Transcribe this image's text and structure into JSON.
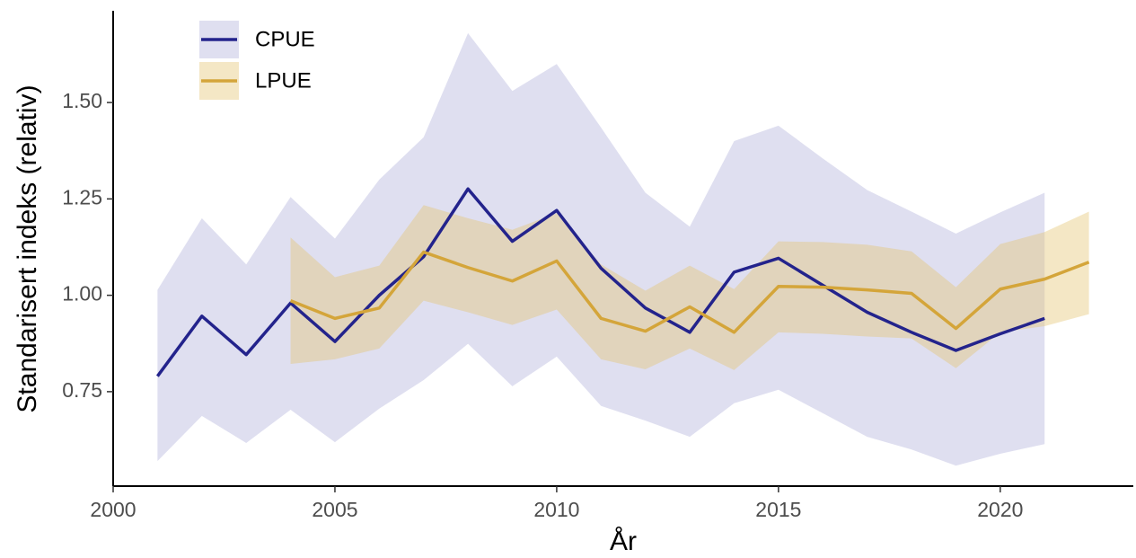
{
  "chart_data": {
    "type": "line",
    "x_label": "År",
    "y_label": "Standarisert indeks (relativ)",
    "x": [
      2001,
      2002,
      2003,
      2004,
      2005,
      2006,
      2007,
      2008,
      2009,
      2010,
      2011,
      2012,
      2013,
      2014,
      2015,
      2016,
      2017,
      2018,
      2019,
      2020,
      2021,
      2022
    ],
    "xlim": [
      2000,
      2023
    ],
    "xticks": [
      2000,
      2005,
      2010,
      2015,
      2020
    ],
    "ylim": [
      0.505,
      1.738
    ],
    "yticks": [
      0.75,
      {
        "value": 1,
        "label": "1.00"
      },
      1.25,
      {
        "value": 1.5,
        "label": "1.50"
      }
    ],
    "grid": false,
    "legend": "top-left",
    "series": [
      {
        "name": "CPUE",
        "color": "#23238c",
        "band_color": "#c9cae6",
        "values": [
          0.79,
          0.946,
          0.846,
          0.98,
          0.88,
          1.0,
          1.1,
          1.276,
          1.14,
          1.22,
          1.07,
          0.967,
          0.904,
          1.06,
          1.096,
          1.026,
          0.956,
          0.904,
          0.857,
          0.9,
          0.94,
          null
        ],
        "lower": [
          0.57,
          0.687,
          0.617,
          0.703,
          0.619,
          0.706,
          0.78,
          0.874,
          0.764,
          0.841,
          0.713,
          0.675,
          0.633,
          0.72,
          0.755,
          0.694,
          0.633,
          0.6,
          0.558,
          0.589,
          0.614,
          null
        ],
        "upper": [
          1.014,
          1.2,
          1.08,
          1.255,
          1.147,
          1.3,
          1.41,
          1.68,
          1.53,
          1.6,
          1.435,
          1.266,
          1.178,
          1.4,
          1.44,
          1.355,
          1.273,
          1.217,
          1.16,
          1.215,
          1.266,
          null
        ]
      },
      {
        "name": "LPUE",
        "color": "#d4a53a",
        "band_color": "#e3c46f",
        "values": [
          null,
          null,
          null,
          0.986,
          0.94,
          0.967,
          1.112,
          1.072,
          1.037,
          1.089,
          0.94,
          0.907,
          0.97,
          0.904,
          1.023,
          1.021,
          1.014,
          1.005,
          0.914,
          1.016,
          1.042,
          1.086
        ],
        "lower": [
          null,
          null,
          null,
          0.822,
          0.834,
          0.862,
          0.986,
          0.956,
          0.923,
          0.963,
          0.834,
          0.808,
          0.862,
          0.806,
          0.904,
          0.9,
          0.893,
          0.888,
          0.811,
          0.904,
          0.92,
          0.951
        ],
        "upper": [
          null,
          null,
          null,
          1.15,
          1.047,
          1.077,
          1.234,
          1.2,
          1.17,
          1.213,
          1.08,
          1.012,
          1.077,
          1.016,
          1.14,
          1.138,
          1.131,
          1.114,
          1.021,
          1.133,
          1.164,
          1.217
        ]
      }
    ]
  }
}
